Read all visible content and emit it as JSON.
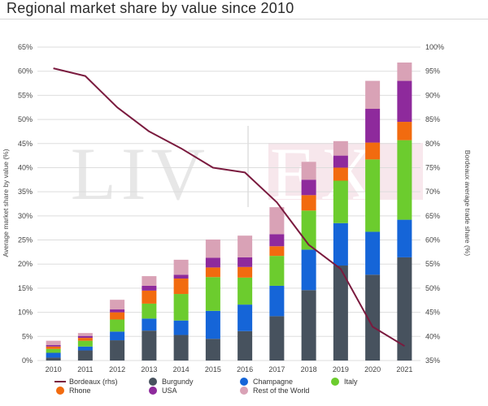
{
  "header": {
    "title": "Regional market share by value since 2010"
  },
  "watermark": {
    "left": "LIV",
    "right": "EX"
  },
  "colors": {
    "burgundy": "#47525e",
    "champagne": "#1565d8",
    "italy": "#6ccc2e",
    "rhone": "#f26b0f",
    "usa": "#8e2a9c",
    "rest_of_world": "#d9a2b6",
    "bordeaux": "#7a1a3e",
    "gridline": "#dddddd"
  },
  "chart_data": {
    "type": "bar",
    "stacked": true,
    "title": "Regional market share by value since 2010",
    "xlabel": "",
    "ylabel": "Average market share by value (%)",
    "y2label": "Bordeaux average trade share (%)",
    "ylim": [
      0,
      65
    ],
    "y2lim": [
      35,
      100
    ],
    "yticks": [
      "0%",
      "5%",
      "10%",
      "15%",
      "20%",
      "25%",
      "30%",
      "35%",
      "40%",
      "45%",
      "50%",
      "55%",
      "60%",
      "65%"
    ],
    "y2ticks": [
      "35%",
      "40%",
      "45%",
      "50%",
      "55%",
      "60%",
      "65%",
      "70%",
      "75%",
      "80%",
      "85%",
      "90%",
      "95%",
      "100%"
    ],
    "categories": [
      "2010",
      "2011",
      "2012",
      "2013",
      "2014",
      "2015",
      "2016",
      "2017",
      "2018",
      "2019",
      "2020",
      "2021"
    ],
    "series": [
      {
        "name": "Burgundy",
        "key": "burgundy",
        "values": [
          0.6,
          2.1,
          4.2,
          6.2,
          5.3,
          4.5,
          6.1,
          9.2,
          14.6,
          19.7,
          17.8,
          21.4
        ]
      },
      {
        "name": "Champagne",
        "key": "champagne",
        "values": [
          1.0,
          0.8,
          1.8,
          2.5,
          3.0,
          5.8,
          5.5,
          6.3,
          8.4,
          8.8,
          8.9,
          7.8
        ]
      },
      {
        "name": "Italy",
        "key": "italy",
        "values": [
          0.8,
          1.2,
          2.5,
          3.1,
          5.5,
          7.0,
          5.6,
          6.2,
          8.1,
          8.8,
          15.0,
          16.5
        ]
      },
      {
        "name": "Rhone",
        "key": "rhone",
        "values": [
          0.5,
          0.6,
          1.5,
          2.7,
          3.2,
          2.0,
          2.2,
          2.0,
          3.2,
          2.7,
          3.5,
          3.8
        ]
      },
      {
        "name": "USA",
        "key": "usa",
        "values": [
          0.3,
          0.4,
          0.6,
          1.0,
          0.8,
          2.0,
          2.0,
          2.5,
          3.2,
          2.5,
          7.0,
          8.5
        ]
      },
      {
        "name": "Rest of the World",
        "key": "rest_of_world",
        "values": [
          0.9,
          0.6,
          2.0,
          2.0,
          3.1,
          3.8,
          4.5,
          5.6,
          3.7,
          3.0,
          5.8,
          3.8
        ]
      }
    ],
    "line_series": {
      "name": "Bordeaux (rhs)",
      "key": "bordeaux",
      "axis": "right",
      "values": [
        95.6,
        94.0,
        87.5,
        82.5,
        79.0,
        75.0,
        74.0,
        67.8,
        59.0,
        54.0,
        42.0,
        38.0
      ]
    },
    "legend": {
      "position": "bottom",
      "entries": [
        {
          "label": "Bordeaux (rhs)",
          "key": "bordeaux",
          "kind": "line"
        },
        {
          "label": "Burgundy",
          "key": "burgundy",
          "kind": "dot"
        },
        {
          "label": "Champagne",
          "key": "champagne",
          "kind": "dot"
        },
        {
          "label": "Italy",
          "key": "italy",
          "kind": "dot"
        },
        {
          "label": "Rhone",
          "key": "rhone",
          "kind": "dot"
        },
        {
          "label": "USA",
          "key": "usa",
          "kind": "dot"
        },
        {
          "label": "Rest of the World",
          "key": "rest_of_world",
          "kind": "dot"
        }
      ]
    },
    "grid": true
  }
}
